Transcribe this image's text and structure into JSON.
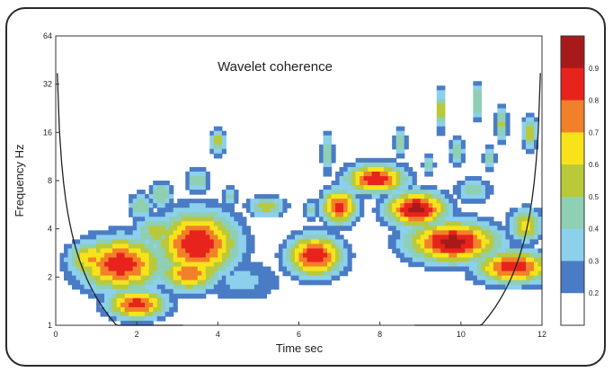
{
  "chart_data": {
    "type": "heatmap",
    "title": "Wavelet coherence",
    "xlabel": "Time sec",
    "ylabel": "Frequency Hz",
    "xlim": [
      0,
      12
    ],
    "ylim": [
      1,
      64
    ],
    "yscale": "log2",
    "x_ticks": [
      "0",
      "2",
      "4",
      "6",
      "8",
      "10",
      "12"
    ],
    "y_ticks": [
      "1",
      "2",
      "4",
      "8",
      "16",
      "32",
      "64"
    ],
    "colorbar": {
      "ticks": [
        "0.9",
        "0.8",
        "0.7",
        "0.6",
        "0.5",
        "0.4",
        "0.3",
        "0.2"
      ],
      "levels": [
        {
          "min": 0.9,
          "color": "#a81a1a"
        },
        {
          "min": 0.8,
          "color": "#e8231c"
        },
        {
          "min": 0.7,
          "color": "#f2802a"
        },
        {
          "min": 0.6,
          "color": "#f8e31a"
        },
        {
          "min": 0.5,
          "color": "#b9c93a"
        },
        {
          "min": 0.4,
          "color": "#8fcfb4"
        },
        {
          "min": 0.3,
          "color": "#8cd0ec"
        },
        {
          "min": 0.2,
          "color": "#4a7cc6"
        },
        {
          "min": 0.0,
          "color": "#ffffff"
        }
      ]
    },
    "regions": [
      {
        "t": 1.6,
        "f": 2.4,
        "st": 0.85,
        "sf": 0.45,
        "peak": 0.88
      },
      {
        "t": 2.0,
        "f": 1.35,
        "st": 0.6,
        "sf": 0.25,
        "peak": 0.85
      },
      {
        "t": 0.9,
        "f": 2.6,
        "st": 0.5,
        "sf": 0.3,
        "peak": 0.72
      },
      {
        "t": 3.5,
        "f": 3.2,
        "st": 0.8,
        "sf": 0.55,
        "peak": 0.9
      },
      {
        "t": 3.3,
        "f": 2.1,
        "st": 0.6,
        "sf": 0.3,
        "peak": 0.78
      },
      {
        "t": 4.6,
        "f": 1.9,
        "st": 0.9,
        "sf": 0.4,
        "peak": 0.33
      },
      {
        "t": 2.5,
        "f": 3.8,
        "st": 0.5,
        "sf": 0.3,
        "peak": 0.55
      },
      {
        "t": 2.1,
        "f": 5.5,
        "st": 0.25,
        "sf": 0.25,
        "peak": 0.5
      },
      {
        "t": 2.6,
        "f": 6.5,
        "st": 0.25,
        "sf": 0.25,
        "peak": 0.5
      },
      {
        "t": 3.5,
        "f": 8.0,
        "st": 0.25,
        "sf": 0.2,
        "peak": 0.5
      },
      {
        "t": 4.0,
        "f": 14.0,
        "st": 0.15,
        "sf": 0.22,
        "peak": 0.58
      },
      {
        "t": 4.3,
        "f": 6.5,
        "st": 0.15,
        "sf": 0.18,
        "peak": 0.45
      },
      {
        "t": 5.2,
        "f": 5.5,
        "st": 0.4,
        "sf": 0.18,
        "peak": 0.55
      },
      {
        "t": 6.4,
        "f": 2.7,
        "st": 0.55,
        "sf": 0.35,
        "peak": 0.9
      },
      {
        "t": 6.3,
        "f": 5.2,
        "st": 0.15,
        "sf": 0.2,
        "peak": 0.45
      },
      {
        "t": 6.7,
        "f": 12.0,
        "st": 0.12,
        "sf": 0.35,
        "peak": 0.5
      },
      {
        "t": 7.0,
        "f": 5.5,
        "st": 0.35,
        "sf": 0.3,
        "peak": 0.85
      },
      {
        "t": 7.9,
        "f": 8.2,
        "st": 0.6,
        "sf": 0.25,
        "peak": 0.88
      },
      {
        "t": 8.9,
        "f": 5.3,
        "st": 0.6,
        "sf": 0.3,
        "peak": 0.95
      },
      {
        "t": 9.8,
        "f": 3.3,
        "st": 0.9,
        "sf": 0.35,
        "peak": 0.95
      },
      {
        "t": 11.3,
        "f": 2.3,
        "st": 0.75,
        "sf": 0.28,
        "peak": 0.88
      },
      {
        "t": 11.6,
        "f": 4.2,
        "st": 0.35,
        "sf": 0.28,
        "peak": 0.65
      },
      {
        "t": 8.5,
        "f": 14.0,
        "st": 0.12,
        "sf": 0.28,
        "peak": 0.5
      },
      {
        "t": 9.5,
        "f": 22.0,
        "st": 0.1,
        "sf": 0.35,
        "peak": 0.6
      },
      {
        "t": 10.4,
        "f": 25.0,
        "st": 0.1,
        "sf": 0.32,
        "peak": 0.55
      },
      {
        "t": 11.0,
        "f": 18.0,
        "st": 0.12,
        "sf": 0.3,
        "peak": 0.55
      },
      {
        "t": 9.9,
        "f": 12.0,
        "st": 0.15,
        "sf": 0.25,
        "peak": 0.5
      },
      {
        "t": 10.7,
        "f": 11.0,
        "st": 0.12,
        "sf": 0.25,
        "peak": 0.48
      },
      {
        "t": 11.7,
        "f": 16.0,
        "st": 0.15,
        "sf": 0.3,
        "peak": 0.62
      },
      {
        "t": 9.2,
        "f": 10.0,
        "st": 0.12,
        "sf": 0.2,
        "peak": 0.45
      },
      {
        "t": 10.3,
        "f": 7.0,
        "st": 0.35,
        "sf": 0.2,
        "peak": 0.5
      }
    ]
  }
}
